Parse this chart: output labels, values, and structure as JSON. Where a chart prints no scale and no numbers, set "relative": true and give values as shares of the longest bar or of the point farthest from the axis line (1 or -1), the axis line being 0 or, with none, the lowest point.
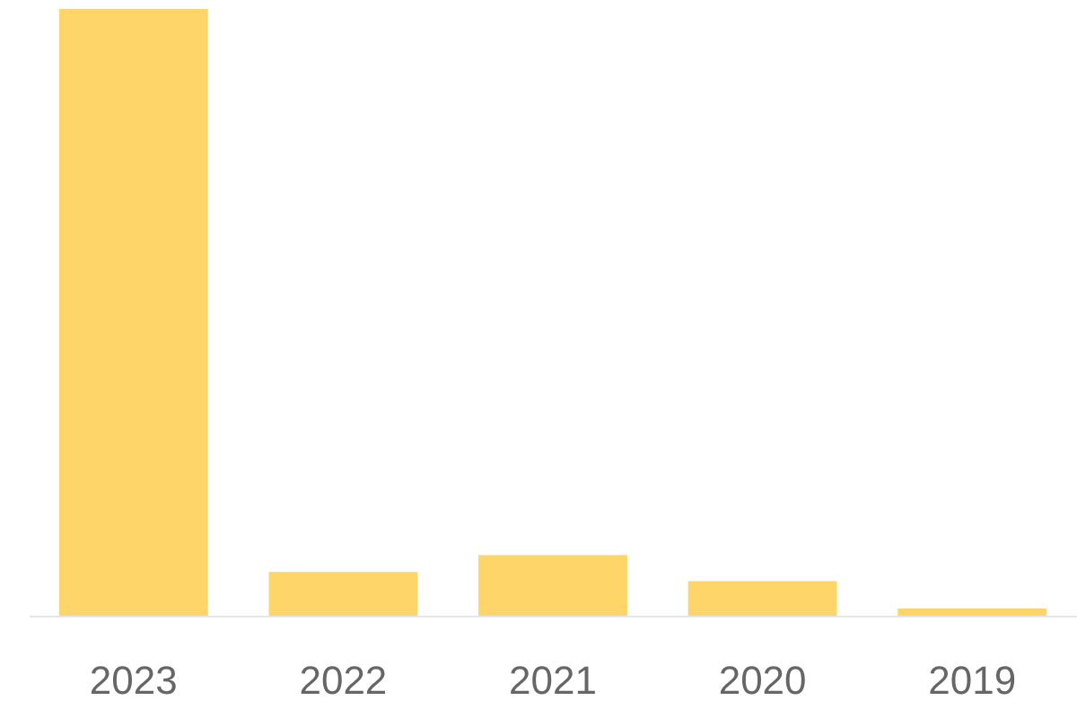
{
  "chart_data": {
    "type": "bar",
    "relative": true,
    "categories": [
      "2023",
      "2022",
      "2021",
      "2020",
      "2019"
    ],
    "values": [
      1,
      0.072,
      0.1,
      0.057,
      0.012
    ],
    "color": "#fdd568"
  }
}
